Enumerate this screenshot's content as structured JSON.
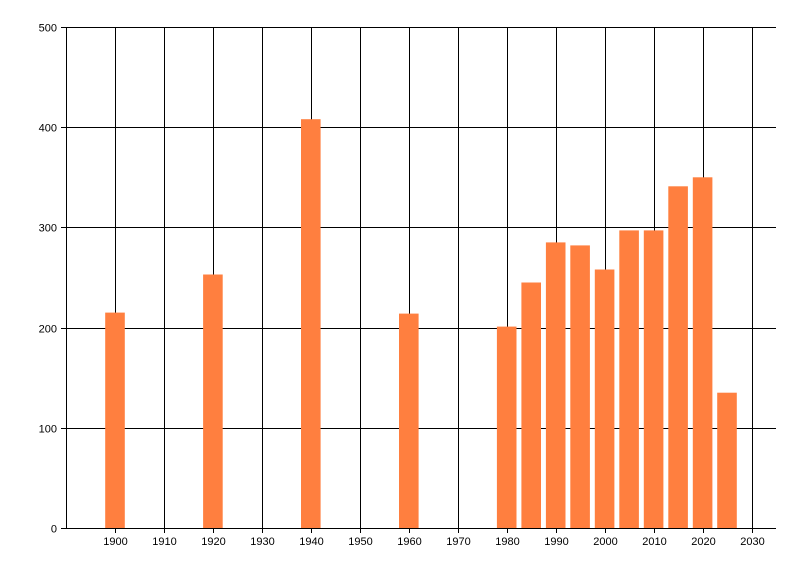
{
  "chart_data": {
    "type": "bar",
    "title": "",
    "xlabel": "",
    "ylabel": "",
    "x": [
      1900,
      1920,
      1940,
      1960,
      1980,
      1985,
      1990,
      1995,
      2000,
      2005,
      2010,
      2015,
      2020,
      2025
    ],
    "values": [
      215,
      253,
      408,
      214,
      201,
      245,
      285,
      282,
      258,
      297,
      297,
      341,
      350,
      135
    ],
    "xlim": [
      1890,
      2035
    ],
    "ylim": [
      0,
      500
    ],
    "x_ticks": [
      1900,
      1910,
      1920,
      1930,
      1940,
      1950,
      1960,
      1970,
      1980,
      1990,
      2000,
      2010,
      2020,
      2030
    ],
    "y_ticks": [
      0,
      100,
      200,
      300,
      400,
      500
    ],
    "grid": true,
    "bar_color": "#FF7F3F",
    "grid_color": "#000000"
  }
}
